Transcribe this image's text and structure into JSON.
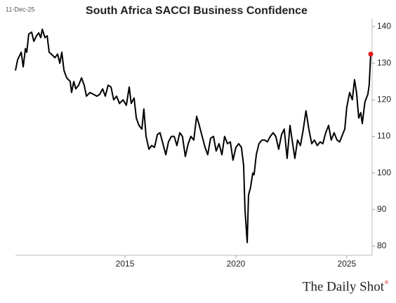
{
  "chart_data": {
    "type": "line",
    "title": "South Africa SACCI Business Confidence",
    "date": "11-Dec-25",
    "source": "The Daily Shot",
    "source_mark": "®",
    "color": "#000000",
    "marker_color": "#e41a1c",
    "xlim": [
      2010.06,
      2026.08
    ],
    "xticks": [
      2015,
      2020,
      2025
    ],
    "ylim": [
      77.5,
      142.3
    ],
    "yticks": [
      80,
      90,
      100,
      110,
      120,
      130,
      140
    ],
    "x": [
      2010.06,
      2010.16,
      2010.32,
      2010.41,
      2010.51,
      2010.57,
      2010.66,
      2010.79,
      2010.89,
      2011.01,
      2011.11,
      2011.2,
      2011.27,
      2011.39,
      2011.49,
      2011.58,
      2011.68,
      2011.84,
      2011.96,
      2012.06,
      2012.15,
      2012.25,
      2012.37,
      2012.53,
      2012.59,
      2012.69,
      2012.78,
      2012.91,
      2013.04,
      2013.16,
      2013.26,
      2013.42,
      2013.58,
      2013.73,
      2013.86,
      2013.99,
      2014.11,
      2014.24,
      2014.37,
      2014.49,
      2014.62,
      2014.75,
      2014.91,
      2015.06,
      2015.19,
      2015.28,
      2015.41,
      2015.51,
      2015.63,
      2015.76,
      2015.85,
      2015.95,
      2016.08,
      2016.2,
      2016.33,
      2016.46,
      2016.58,
      2016.71,
      2016.84,
      2016.96,
      2017.09,
      2017.22,
      2017.34,
      2017.47,
      2017.59,
      2017.72,
      2017.85,
      2017.97,
      2018.1,
      2018.23,
      2018.35,
      2018.48,
      2018.61,
      2018.73,
      2018.86,
      2018.99,
      2019.11,
      2019.24,
      2019.37,
      2019.49,
      2019.62,
      2019.75,
      2019.87,
      2020.0,
      2020.13,
      2020.25,
      2020.35,
      2020.41,
      2020.51,
      2020.57,
      2020.66,
      2020.76,
      2020.82,
      2020.92,
      2021.04,
      2021.17,
      2021.3,
      2021.42,
      2021.55,
      2021.68,
      2021.8,
      2021.93,
      2022.06,
      2022.18,
      2022.31,
      2022.44,
      2022.56,
      2022.66,
      2022.78,
      2022.91,
      2023.04,
      2023.16,
      2023.29,
      2023.42,
      2023.54,
      2023.67,
      2023.8,
      2023.92,
      2024.05,
      2024.18,
      2024.3,
      2024.43,
      2024.56,
      2024.68,
      2024.81,
      2024.91,
      2025.0,
      2025.13,
      2025.25,
      2025.35,
      2025.44,
      2025.54,
      2025.63,
      2025.7,
      2025.82,
      2025.95,
      2026.01,
      2026.08
    ],
    "values": [
      128,
      131,
      133,
      129,
      134,
      133,
      138,
      138.5,
      136,
      137.5,
      138.3,
      137,
      139.3,
      137,
      137.5,
      133,
      132.5,
      131.5,
      132.5,
      130,
      133,
      128,
      126,
      125,
      122,
      125,
      123,
      124,
      126,
      124,
      121,
      122,
      121.5,
      121,
      121.5,
      123,
      121,
      124,
      123.5,
      120,
      121,
      119,
      120,
      118.5,
      123.5,
      119,
      120.5,
      115,
      113,
      112,
      117.5,
      110,
      106.5,
      107.5,
      107,
      110.5,
      111,
      108,
      105,
      108.5,
      110,
      110,
      107.5,
      111,
      110,
      104.5,
      108,
      110,
      109,
      115.5,
      113,
      110,
      107,
      105,
      109.5,
      110,
      106,
      108,
      105,
      110,
      108,
      108.5,
      103.5,
      107,
      108,
      107,
      102,
      90,
      81,
      94,
      96,
      100,
      99.5,
      105,
      108,
      109,
      109,
      108.5,
      110,
      111,
      110,
      106.5,
      110.5,
      112,
      104,
      113,
      108,
      104,
      109,
      107.5,
      112,
      117,
      112,
      108,
      109,
      107.5,
      108.5,
      108,
      111,
      113,
      109,
      111,
      109,
      108.5,
      110.5,
      112,
      118,
      122,
      120,
      125.5,
      122,
      115,
      116.5,
      113.5,
      119.5,
      121.5,
      124,
      132.5
    ]
  }
}
